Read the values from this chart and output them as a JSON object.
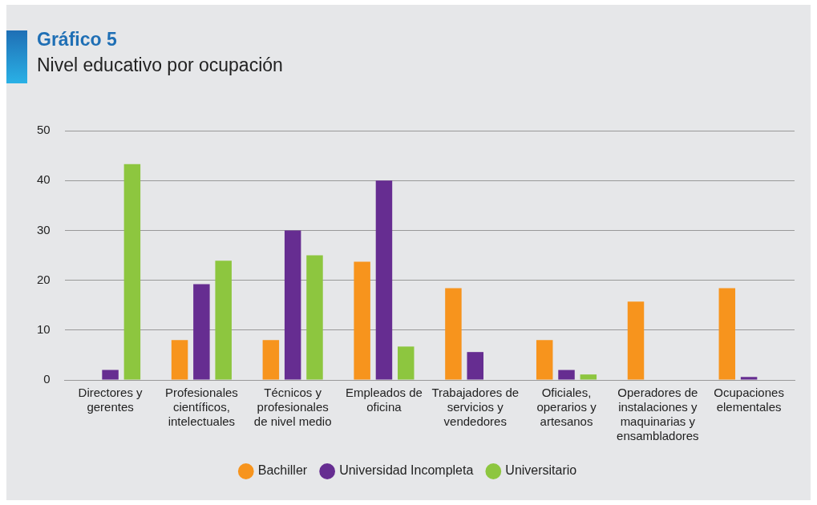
{
  "chart_data": {
    "type": "bar",
    "title": "Gráfico 5",
    "subtitle": "Nivel educativo por ocupación",
    "categories": [
      "Directores y gerentes",
      "Profesionales científicos, intelectuales",
      "Técnicos y profesionales de nivel medio",
      "Empleados de oficina",
      "Trabajadores de servicios y vendedores",
      "Oficiales, operarios y artesanos",
      "Operadores de instalaciones y maquinarias y ensambladores",
      "Ocupaciones elementales"
    ],
    "series": [
      {
        "name": "Bachiller",
        "color": "#f7941d",
        "values": [
          0,
          8,
          8,
          23.7,
          18.4,
          8,
          15.7,
          18.4
        ]
      },
      {
        "name": "Universidad Incompleta",
        "color": "#662d91",
        "values": [
          2,
          19.2,
          30,
          40,
          5.6,
          2,
          0,
          0.6
        ]
      },
      {
        "name": "Universitario",
        "color": "#8dc63f",
        "values": [
          43.3,
          23.9,
          25,
          6.7,
          0,
          1.1,
          0,
          0
        ]
      }
    ],
    "ylim": [
      0,
      50
    ],
    "yticks": [
      0,
      10,
      20,
      30,
      40,
      50
    ],
    "grid": "y",
    "legend": "bottom"
  }
}
